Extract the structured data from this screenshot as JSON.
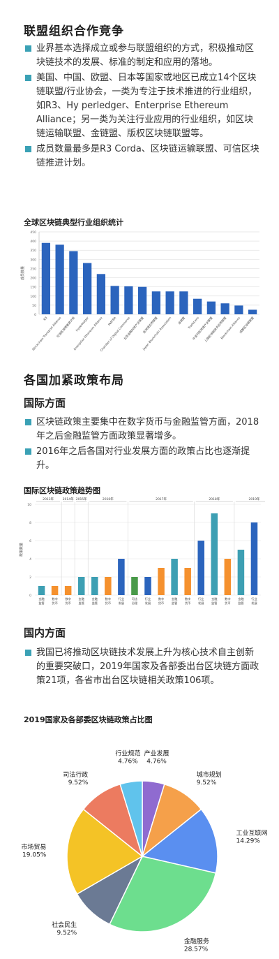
{
  "section1": {
    "title": "联盟组织合作竞争",
    "bullets": [
      "业界基本选择成立或参与联盟组织的方式，积极推动区块链技术的发展、标准的制定和应用的落地。",
      "美国、中国、欧盟、日本等国家或地区已成立14个区块链联盟/行业协会，一类为专注于技术推进的行业组织，如R3、Hy perledger、Enterprise Ethereum Alliance；另一类为关注行业应用的行业组织，如区块链运输联盟、金链盟、版权区块链联盟等。",
      "成员数量最多是R3 Corda、区块链运输联盟、可信区块链推进计划。"
    ]
  },
  "chart1_data": {
    "type": "bar",
    "title": "全球区块链典型行业组织统计",
    "ylabel": "成员数量",
    "ylim": [
      0,
      450
    ],
    "yticks": [
      "0",
      "50",
      "100",
      "150",
      "200",
      "250",
      "300",
      "350",
      "400",
      "450"
    ],
    "categories": [
      "R3",
      "Blockchain Transport Alliance",
      "可信区块链推进计划",
      "Hyperledger",
      "Enterprise Ethereum Alliance",
      "INATBA",
      "Chamber of Digital Commerce",
      "北京金融科技产业联盟",
      "区块链应用联盟",
      "Japan Blockchain Association",
      "金链盟",
      "TradeLens",
      "中关村区块链产业联盟",
      "上海区块链技术应用联盟",
      "Blockchain Alliance",
      "成都区块链联盟"
    ],
    "values": [
      390,
      380,
      345,
      280,
      220,
      155,
      153,
      150,
      125,
      125,
      125,
      85,
      70,
      60,
      48,
      25
    ],
    "color": "#2b64bd"
  },
  "section2": {
    "title": "各国加紧政策布局"
  },
  "intl": {
    "title": "国际方面",
    "bullets": [
      "区块链政策主要集中在数字货币与金融监管方面，2018年之后金融监管方面政策显著增多。",
      "2016年之后各国对行业发展方面的政策占比也逐渐提升。"
    ]
  },
  "chart2_data": {
    "type": "bar",
    "title": "国际区块链政策趋势图",
    "ylabel": "政策数量",
    "ylim": [
      0,
      10
    ],
    "yticks": [
      "0",
      "2",
      "4",
      "6",
      "8",
      "10"
    ],
    "years": [
      "2013年",
      "2014年",
      "2015年",
      "2016年",
      "2017年",
      "2018年",
      "2019年"
    ],
    "categories": [
      "金融监管",
      "数字货币",
      "数字货币",
      "金融监管",
      "金融监管",
      "数字货币",
      "行业发展",
      "司法治理",
      "行业发展",
      "数字货币",
      "金融监管",
      "数字货币",
      "行业发展",
      "金融监管",
      "数字货币",
      "金融监管",
      "行业发展"
    ],
    "values": [
      1,
      1,
      1,
      2,
      2,
      2,
      4,
      2,
      2,
      3,
      4,
      3,
      6,
      9,
      4,
      5,
      8
    ],
    "colors": [
      "#3d9fb3",
      "#f5912e",
      "#f5912e",
      "#3d9fb3",
      "#3d9fb3",
      "#f5912e",
      "#2b64bd",
      "#4a9a4a",
      "#2b64bd",
      "#f5912e",
      "#3d9fb3",
      "#f5912e",
      "#2b64bd",
      "#3d9fb3",
      "#f5912e",
      "#3d9fb3",
      "#2b64bd"
    ]
  },
  "domestic": {
    "title": "国内方面",
    "bullets": [
      "我国已将推动区块链技术发展上升为核心技术自主创新的重要突破口，2019年国家及各部委出台区块链方面政策21项，各省市出台区块链相关政策106项。"
    ]
  },
  "chart3_data": {
    "type": "pie",
    "title": "2019国家及各部委区块链政策占比图",
    "slices": [
      {
        "label": "产业发展",
        "value": 4.76,
        "text": "4.76%",
        "color": "#8f6bd0"
      },
      {
        "label": "城市规划",
        "value": 9.52,
        "text": "9.52%",
        "color": "#f5a04a"
      },
      {
        "label": "工业互联网",
        "value": 14.29,
        "text": "14.29%",
        "color": "#5a8ff0"
      },
      {
        "label": "金融服务",
        "value": 28.57,
        "text": "28.57%",
        "color": "#6dde8e"
      },
      {
        "label": "社会民生",
        "value": 9.52,
        "text": "9.52%",
        "color": "#6b7a94"
      },
      {
        "label": "市场贸易",
        "value": 19.05,
        "text": "19.05%",
        "color": "#f4c326"
      },
      {
        "label": "司法行政",
        "value": 9.52,
        "text": "9.52%",
        "color": "#ec7b60"
      },
      {
        "label": "行业规范",
        "value": 4.76,
        "text": "4.76%",
        "color": "#60c3ec"
      }
    ]
  }
}
